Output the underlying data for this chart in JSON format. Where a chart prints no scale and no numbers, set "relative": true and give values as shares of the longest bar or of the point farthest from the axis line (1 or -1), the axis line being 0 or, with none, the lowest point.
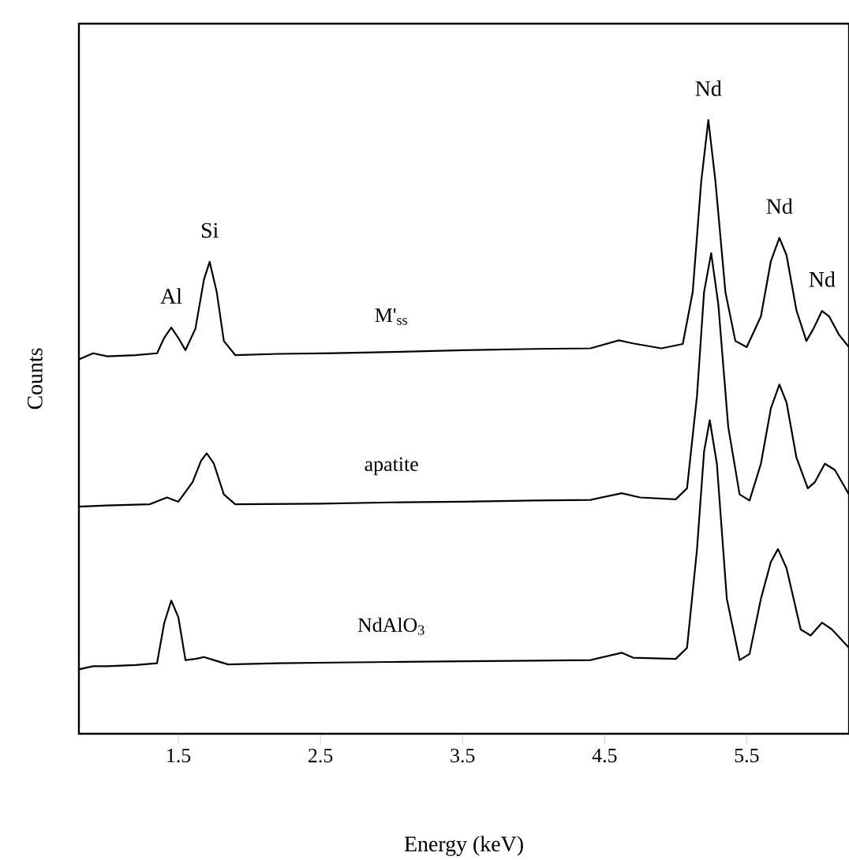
{
  "chart_data": {
    "type": "line",
    "relative": true,
    "xlabel": "Energy (keV)",
    "ylabel": "Counts",
    "xlim": [
      0.8,
      6.22
    ],
    "xticks": [
      1.5,
      2.5,
      3.5,
      4.5,
      5.5
    ],
    "marker": "none",
    "line_style": "solid",
    "series": [
      {
        "name": "M'$_{ss}$",
        "color": "#000000",
        "x": [
          0.8,
          0.9,
          1.0,
          1.2,
          1.35,
          1.4,
          1.45,
          1.5,
          1.55,
          1.62,
          1.68,
          1.72,
          1.77,
          1.82,
          1.9,
          2.2,
          2.6,
          3.0,
          3.5,
          4.0,
          4.4,
          4.6,
          4.7,
          4.9,
          5.05,
          5.12,
          5.18,
          5.23,
          5.28,
          5.35,
          5.42,
          5.5,
          5.6,
          5.67,
          5.73,
          5.78,
          5.85,
          5.92,
          5.97,
          6.03,
          6.08,
          6.15,
          6.22
        ],
        "values": [
          0.61,
          0.62,
          0.615,
          0.617,
          0.62,
          0.645,
          0.662,
          0.645,
          0.625,
          0.66,
          0.74,
          0.769,
          0.72,
          0.64,
          0.617,
          0.619,
          0.62,
          0.622,
          0.625,
          0.627,
          0.628,
          0.641,
          0.636,
          0.628,
          0.635,
          0.72,
          0.9,
          1,
          0.9,
          0.72,
          0.64,
          0.63,
          0.68,
          0.77,
          0.808,
          0.78,
          0.69,
          0.64,
          0.66,
          0.689,
          0.68,
          0.65,
          0.63
        ]
      },
      {
        "name": "apatite",
        "color": "#000000",
        "x": [
          0.8,
          1.0,
          1.3,
          1.42,
          1.5,
          1.6,
          1.66,
          1.7,
          1.75,
          1.82,
          1.9,
          2.5,
          3.0,
          3.5,
          4.0,
          4.4,
          4.62,
          4.75,
          5.0,
          5.08,
          5.15,
          5.2,
          5.25,
          5.3,
          5.37,
          5.45,
          5.52,
          5.6,
          5.67,
          5.73,
          5.78,
          5.85,
          5.93,
          5.98,
          6.05,
          6.12,
          6.22
        ],
        "values": [
          0.37,
          0.372,
          0.374,
          0.385,
          0.378,
          0.41,
          0.445,
          0.457,
          0.44,
          0.39,
          0.374,
          0.375,
          0.377,
          0.378,
          0.38,
          0.381,
          0.392,
          0.385,
          0.382,
          0.4,
          0.55,
          0.72,
          0.783,
          0.7,
          0.5,
          0.39,
          0.38,
          0.44,
          0.53,
          0.569,
          0.54,
          0.45,
          0.4,
          0.41,
          0.44,
          0.43,
          0.39
        ]
      },
      {
        "name": "NdAlO$_{3}$",
        "color": "#000000",
        "x": [
          0.8,
          0.9,
          1.0,
          1.2,
          1.35,
          1.4,
          1.45,
          1.5,
          1.55,
          1.62,
          1.68,
          1.75,
          1.85,
          2.2,
          2.6,
          3.0,
          3.5,
          4.0,
          4.4,
          4.62,
          4.7,
          5.0,
          5.08,
          5.15,
          5.2,
          5.24,
          5.29,
          5.36,
          5.45,
          5.52,
          5.6,
          5.67,
          5.72,
          5.78,
          5.88,
          5.95,
          6.03,
          6.1,
          6.22
        ],
        "values": [
          0.105,
          0.11,
          0.11,
          0.112,
          0.115,
          0.18,
          0.217,
          0.19,
          0.12,
          0.122,
          0.125,
          0.12,
          0.113,
          0.115,
          0.116,
          0.117,
          0.118,
          0.119,
          0.12,
          0.132,
          0.124,
          0.122,
          0.14,
          0.3,
          0.46,
          0.511,
          0.44,
          0.22,
          0.12,
          0.13,
          0.22,
          0.28,
          0.301,
          0.27,
          0.17,
          0.16,
          0.181,
          0.17,
          0.14
        ]
      }
    ],
    "annotations": [
      {
        "text": "Al",
        "x": 1.45,
        "y": 0.662
      },
      {
        "text": "Si",
        "x": 1.72,
        "y": 0.769
      },
      {
        "text": "Nd",
        "x": 5.23,
        "y": 1
      },
      {
        "text": "Nd",
        "x": 5.73,
        "y": 0.808
      },
      {
        "text": "Nd",
        "x": 6.03,
        "y": 0.689
      }
    ]
  }
}
